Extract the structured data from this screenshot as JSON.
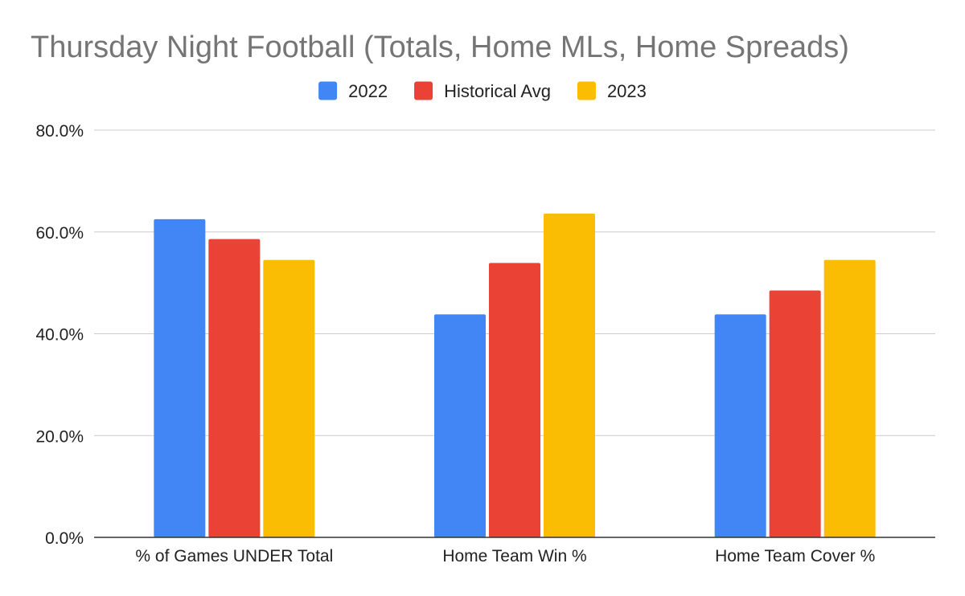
{
  "chart_data": {
    "type": "bar",
    "title": "Thursday Night Football (Totals, Home MLs, Home Spreads)",
    "xlabel": "",
    "ylabel": "",
    "categories": [
      "% of Games UNDER Total",
      "Home Team Win %",
      "Home Team Cover %"
    ],
    "series": [
      {
        "name": "2022",
        "color": "#4285f4",
        "values": [
          62.5,
          43.8,
          43.8
        ]
      },
      {
        "name": "Historical Avg",
        "color": "#ea4335",
        "values": [
          58.6,
          53.9,
          48.5
        ]
      },
      {
        "name": "2023",
        "color": "#fbbc04",
        "values": [
          54.5,
          63.6,
          54.5
        ]
      }
    ],
    "ylim": [
      0,
      80
    ],
    "y_ticks": [
      "0.0%",
      "20.0%",
      "40.0%",
      "60.0%",
      "80.0%"
    ],
    "y_tick_values": [
      0,
      20,
      40,
      60,
      80
    ],
    "grid": true,
    "legend_position": "top-center",
    "gridline_color": "#cccccc",
    "axis_color": "#333333"
  }
}
